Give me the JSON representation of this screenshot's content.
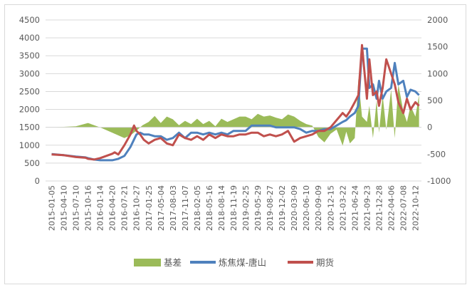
{
  "chart_data": {
    "type": "line",
    "title": "",
    "left_axis": {
      "min": 0,
      "max": 4500,
      "ticks": [
        0,
        500,
        1000,
        1500,
        2000,
        2500,
        3000,
        3500,
        4000,
        4500
      ]
    },
    "right_axis": {
      "min": -1000,
      "max": 2000,
      "ticks": [
        -1000,
        -500,
        0,
        500,
        1000,
        1500,
        2000
      ]
    },
    "x_tick_labels": [
      "2015-01-05",
      "2015-04-10",
      "2015-07-10",
      "2015-10-16",
      "2016-01-14",
      "2016-04-20",
      "2016-07-21",
      "2016-10-27",
      "2017-01-25",
      "2017-05-04",
      "2017-08-03",
      "2017-11-07",
      "2018-02-05",
      "2018-05-16",
      "2018-08-14",
      "2018-11-19",
      "2019-02-25",
      "2019-05-29",
      "2019-08-27",
      "2019-12-02",
      "2020-03-09",
      "2020-06-10",
      "2020-09-09",
      "2020-12-15",
      "2021-03-22",
      "2021-06-24",
      "2021-09-23",
      "2021-12-28",
      "2022-04-06",
      "2022-07-08",
      "2022-10-12"
    ],
    "legend_position": "bottom",
    "colors": {
      "basis": "#9bbb59",
      "spot": "#4f81bd",
      "futures": "#c0504d"
    },
    "series": [
      {
        "name": "基差",
        "axis": "right",
        "style": "area",
        "x_index": [
          0,
          2,
          3,
          4,
          5,
          6,
          6.5,
          7,
          7.5,
          8,
          8.5,
          9,
          9.5,
          10,
          10.5,
          11,
          11.5,
          12,
          12.5,
          13,
          13.5,
          14,
          14.5,
          15,
          15.5,
          16,
          16.5,
          17,
          17.5,
          18,
          18.5,
          19,
          19.5,
          20,
          20.5,
          21,
          21.5,
          22,
          22.5,
          23,
          23.5,
          24,
          24.3,
          24.6,
          25,
          25.3,
          25.6,
          26,
          26.2,
          26.5,
          26.8,
          27,
          27.3,
          27.6,
          28,
          28.3,
          28.6,
          29,
          29.3,
          29.6,
          30,
          30.3
        ],
        "values": [
          0,
          20,
          80,
          0,
          -100,
          -200,
          -150,
          -60,
          40,
          100,
          210,
          80,
          200,
          150,
          40,
          120,
          60,
          160,
          60,
          120,
          20,
          160,
          100,
          150,
          200,
          200,
          150,
          250,
          200,
          220,
          180,
          150,
          240,
          200,
          120,
          60,
          30,
          -180,
          -280,
          -120,
          -40,
          -340,
          -80,
          -300,
          -200,
          900,
          200,
          100,
          400,
          -200,
          500,
          -100,
          600,
          -50,
          700,
          -200,
          800,
          300,
          100,
          400,
          200,
          600
        ],
        "values_note": "basis in right-axis units"
      },
      {
        "name": "炼焦煤-唐山",
        "axis": "left",
        "style": "line",
        "x_index": [
          0,
          1,
          2,
          2.8,
          3,
          3.5,
          4,
          5,
          5.5,
          6,
          6.5,
          7,
          7.3,
          7.6,
          8,
          8.5,
          9,
          9.5,
          10,
          10.5,
          11,
          11.5,
          12,
          12.5,
          13,
          13.5,
          14,
          14.5,
          15,
          15.5,
          16,
          16.5,
          17,
          17.5,
          18,
          18.5,
          19,
          19.5,
          20,
          20.5,
          21,
          21.5,
          22,
          22.5,
          23,
          23.5,
          24,
          24.3,
          24.6,
          25,
          25.3,
          25.6,
          26,
          26.2,
          26.5,
          26.8,
          27,
          27.3,
          27.6,
          28,
          28.3,
          28.6,
          29,
          29.3,
          29.6,
          30,
          30.3
        ],
        "values": [
          750,
          720,
          680,
          660,
          640,
          600,
          580,
          580,
          620,
          700,
          950,
          1300,
          1350,
          1300,
          1300,
          1250,
          1250,
          1150,
          1200,
          1350,
          1200,
          1350,
          1350,
          1300,
          1350,
          1300,
          1350,
          1300,
          1400,
          1400,
          1400,
          1550,
          1550,
          1550,
          1550,
          1500,
          1500,
          1500,
          1500,
          1450,
          1350,
          1400,
          1400,
          1450,
          1450,
          1550,
          1650,
          1700,
          1800,
          1900,
          2100,
          3700,
          3700,
          2600,
          2700,
          2300,
          2800,
          2300,
          2500,
          2600,
          3300,
          2700,
          2800,
          2350,
          2550,
          2500,
          2400
        ]
      },
      {
        "name": "期货",
        "axis": "left",
        "style": "line",
        "x_index": [
          0,
          1,
          2,
          2.8,
          3,
          3.5,
          4,
          5,
          5.2,
          5.5,
          6,
          6.5,
          6.8,
          7,
          7.3,
          7.6,
          8,
          8.5,
          9,
          9.5,
          10,
          10.5,
          11,
          11.5,
          12,
          12.5,
          13,
          13.5,
          14,
          14.5,
          15,
          15.5,
          16,
          16.5,
          17,
          17.5,
          18,
          18.5,
          19,
          19.5,
          20,
          20.5,
          21,
          21.5,
          22,
          22.5,
          23,
          23.5,
          24,
          24.3,
          24.6,
          25,
          25.3,
          25.6,
          26,
          26.2,
          26.5,
          26.8,
          27,
          27.3,
          27.6,
          28,
          28.3,
          28.6,
          29,
          29.3,
          29.6,
          30,
          30.3
        ],
        "values": [
          740,
          720,
          670,
          650,
          620,
          600,
          640,
          760,
          800,
          740,
          1000,
          1300,
          1550,
          1400,
          1300,
          1150,
          1050,
          1150,
          1200,
          1050,
          1000,
          1300,
          1200,
          1150,
          1250,
          1150,
          1300,
          1200,
          1300,
          1250,
          1250,
          1300,
          1300,
          1350,
          1350,
          1250,
          1300,
          1250,
          1300,
          1400,
          1100,
          1200,
          1250,
          1300,
          1400,
          1400,
          1500,
          1700,
          1900,
          1800,
          1950,
          2200,
          2400,
          3800,
          2300,
          3400,
          2400,
          2500,
          2100,
          2600,
          3400,
          3000,
          2700,
          2200,
          1900,
          2300,
          2000,
          2200,
          2100
        ]
      }
    ]
  }
}
